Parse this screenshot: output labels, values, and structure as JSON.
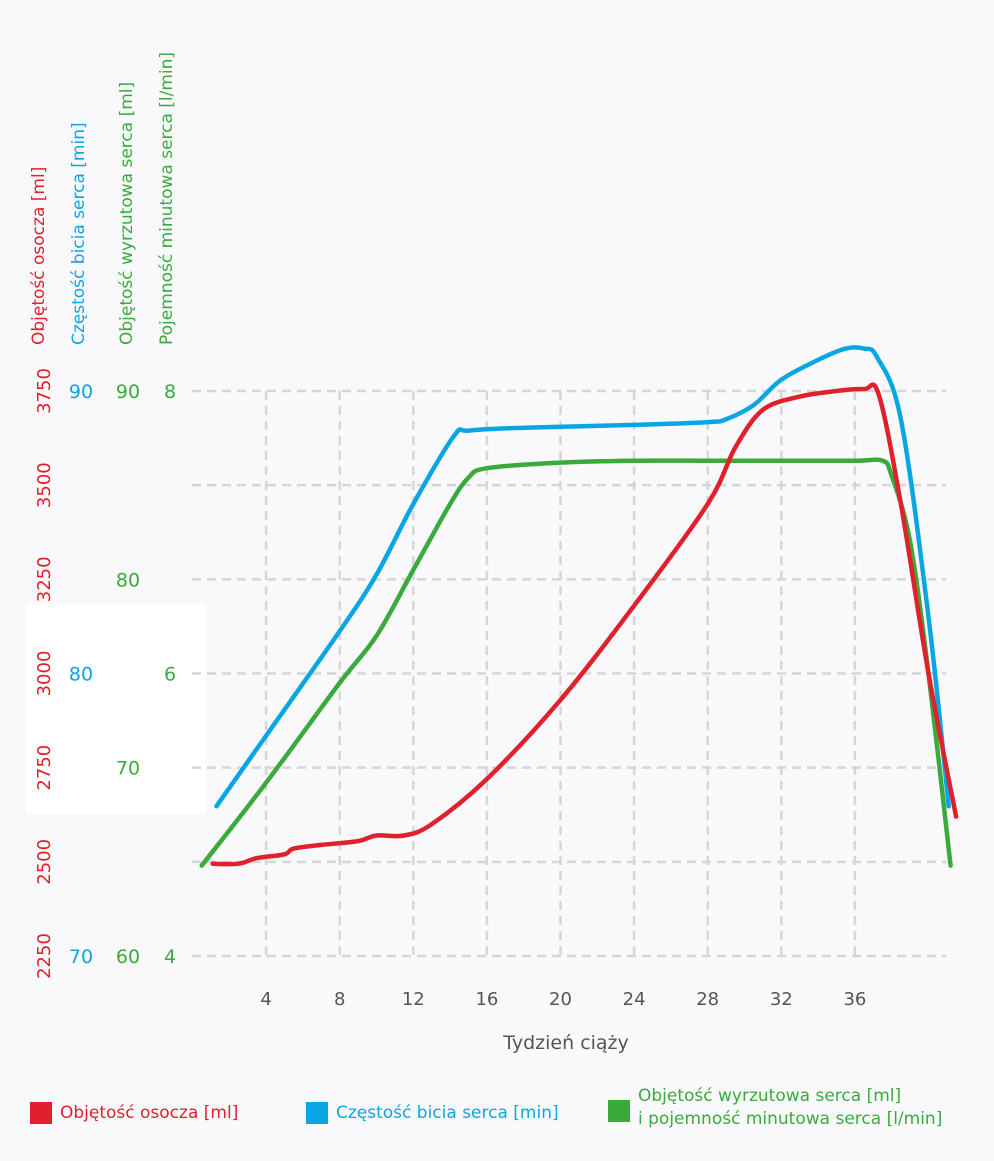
{
  "chart_data": {
    "type": "line",
    "title": "",
    "xlabel": "Tydzień ciąży",
    "x_ticks": [
      4,
      8,
      12,
      16,
      20,
      24,
      28,
      32,
      36
    ],
    "xlim": [
      0,
      40
    ],
    "grid": true,
    "legend_position": "bottom",
    "colors": {
      "plasma": "#e0202b",
      "heart_rate": "#0aa6e4",
      "stroke": "#3aaa3d",
      "axis_text": "#555555",
      "grid": "#d6d6d6"
    },
    "axes": [
      {
        "label": "Objętość osocza [ml]",
        "color": "#e0202b",
        "ticks": [
          "2250",
          "2500",
          "2750",
          "3000",
          "3250",
          "3500",
          "3750"
        ],
        "ylim": [
          2250,
          3750
        ]
      },
      {
        "label": "Częstość bicia serca [min]",
        "color": "#0aa6e4",
        "ticks": [
          "70",
          "80",
          "90"
        ],
        "ylim": [
          70,
          90
        ]
      },
      {
        "label": "Objętość wyrzutowa serca [ml]",
        "color": "#3aaa3d",
        "ticks": [
          "60",
          "70",
          "80",
          "90"
        ],
        "ylim": [
          60,
          90
        ]
      },
      {
        "label": "Pojemność minutowa serca [l/min]",
        "color": "#3aaa3d",
        "ticks": [
          "4",
          "6",
          "8"
        ],
        "ylim": [
          4,
          8
        ]
      }
    ],
    "series": [
      {
        "name": "Objętość osocza [ml]",
        "axis": 0,
        "color": "#e0202b",
        "x": [
          1.1,
          2.5,
          3.5,
          5,
          5.5,
          7,
          9,
          10,
          11.5,
          13,
          16,
          20,
          24,
          28,
          29.5,
          31,
          33,
          35,
          36.5,
          37.3,
          38.5,
          40,
          41.5
        ],
        "y": [
          2495,
          2495,
          2510,
          2520,
          2535,
          2545,
          2555,
          2570,
          2570,
          2600,
          2720,
          2930,
          3180,
          3450,
          3600,
          3700,
          3735,
          3750,
          3755,
          3740,
          3450,
          3000,
          2620
        ]
      },
      {
        "name": "Częstość bicia serca [min]",
        "axis": 1,
        "color": "#0aa6e4",
        "x": [
          1.3,
          4,
          8,
          10,
          12,
          14.2,
          15,
          18,
          24,
          28,
          29,
          30.5,
          32,
          34,
          35.5,
          36.5,
          37.2,
          38.5,
          40,
          41.1
        ],
        "y": [
          75.3,
          77.8,
          81.5,
          83.5,
          86,
          88.4,
          88.6,
          88.7,
          88.8,
          88.9,
          89,
          89.5,
          90.4,
          91.1,
          91.5,
          91.5,
          91.2,
          89,
          82,
          75.3
        ]
      },
      {
        "name": "Objętość wyrzutowa serca [ml] i pojemność minutowa serca [l/min]",
        "axis": 2,
        "color": "#3aaa3d",
        "x": [
          0.5,
          4,
          8,
          10,
          12,
          14,
          15,
          16,
          20,
          24,
          28,
          32,
          36,
          37.5,
          38,
          39,
          40,
          41.2
        ],
        "y": [
          64.8,
          69.2,
          74.5,
          77,
          80.5,
          84,
          85.4,
          85.9,
          86.2,
          86.3,
          86.3,
          86.3,
          86.3,
          86.3,
          85.5,
          82,
          75,
          64.8
        ]
      }
    ]
  },
  "legend": {
    "items": [
      {
        "label": "Objętość osocza [ml]",
        "color": "#e0202b"
      },
      {
        "label": "Częstość bicia serca [min]",
        "color": "#0aa6e4"
      },
      {
        "label_line1": "Objętość wyrzutowa serca [ml]",
        "label_line2": "i pojemność minutowa serca [l/min]",
        "color": "#3aaa3d"
      }
    ]
  }
}
